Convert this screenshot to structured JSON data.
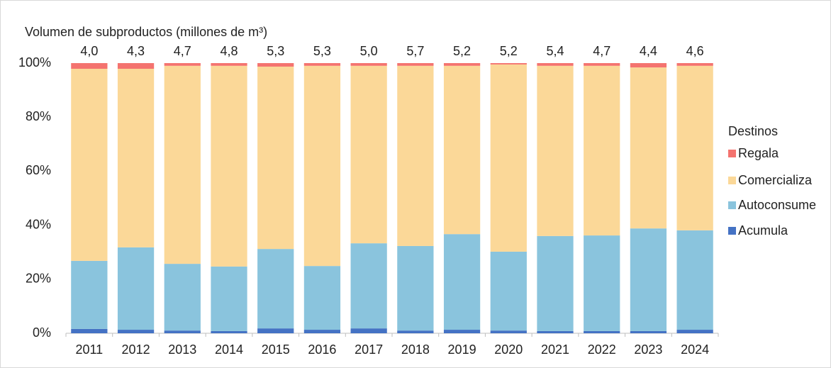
{
  "chart_data": {
    "type": "stacked_bar",
    "title": "Volumen de subproductos (millones de m³)",
    "legend_title": "Destinos",
    "legend": "right",
    "categories": [
      "2011",
      "2012",
      "2013",
      "2014",
      "2015",
      "2016",
      "2017",
      "2018",
      "2019",
      "2020",
      "2021",
      "2022",
      "2023",
      "2024"
    ],
    "series": [
      {
        "name": "Acumula",
        "color": "#4472c4",
        "values": [
          1.6,
          1.3,
          1.0,
          0.8,
          1.8,
          1.3,
          1.8,
          1.0,
          1.3,
          1.0,
          0.8,
          0.8,
          0.8,
          1.3
        ]
      },
      {
        "name": "Autoconsume",
        "color": "#8ac4dd",
        "values": [
          25.2,
          30.5,
          24.7,
          23.9,
          29.4,
          23.6,
          31.5,
          31.3,
          35.4,
          29.2,
          35.2,
          35.4,
          38.0,
          36.8
        ]
      },
      {
        "name": "Comercializa",
        "color": "#fbd898",
        "values": [
          71.1,
          66.1,
          73.3,
          74.3,
          67.5,
          74.1,
          65.7,
          66.7,
          62.3,
          69.3,
          63.0,
          62.8,
          59.6,
          60.9
        ]
      },
      {
        "name": "Regala",
        "color": "#f4736f",
        "values": [
          2.1,
          2.1,
          1.0,
          1.0,
          1.3,
          1.0,
          1.0,
          1.0,
          1.0,
          0.5,
          1.0,
          1.0,
          1.6,
          1.0
        ]
      }
    ],
    "totals": {
      "values": [
        4.0,
        4.3,
        4.7,
        4.8,
        5.3,
        5.3,
        5.0,
        5.7,
        5.2,
        5.2,
        5.4,
        4.7,
        4.4,
        4.6
      ],
      "value_labels": [
        "4,0",
        "4,3",
        "4,7",
        "4,8",
        "5,3",
        "5,3",
        "5,0",
        "5,7",
        "5,2",
        "5,2",
        "5,4",
        "4,7",
        "4,4",
        "4,6"
      ]
    },
    "ylim": [
      0,
      100
    ],
    "yticks": [
      {
        "value": 0,
        "label": "0%"
      },
      {
        "value": 20,
        "label": "20%"
      },
      {
        "value": 40,
        "label": "40%"
      },
      {
        "value": 60,
        "label": "60%"
      },
      {
        "value": 80,
        "label": "80%"
      },
      {
        "value": 100,
        "label": "100%"
      }
    ],
    "grid": false
  }
}
